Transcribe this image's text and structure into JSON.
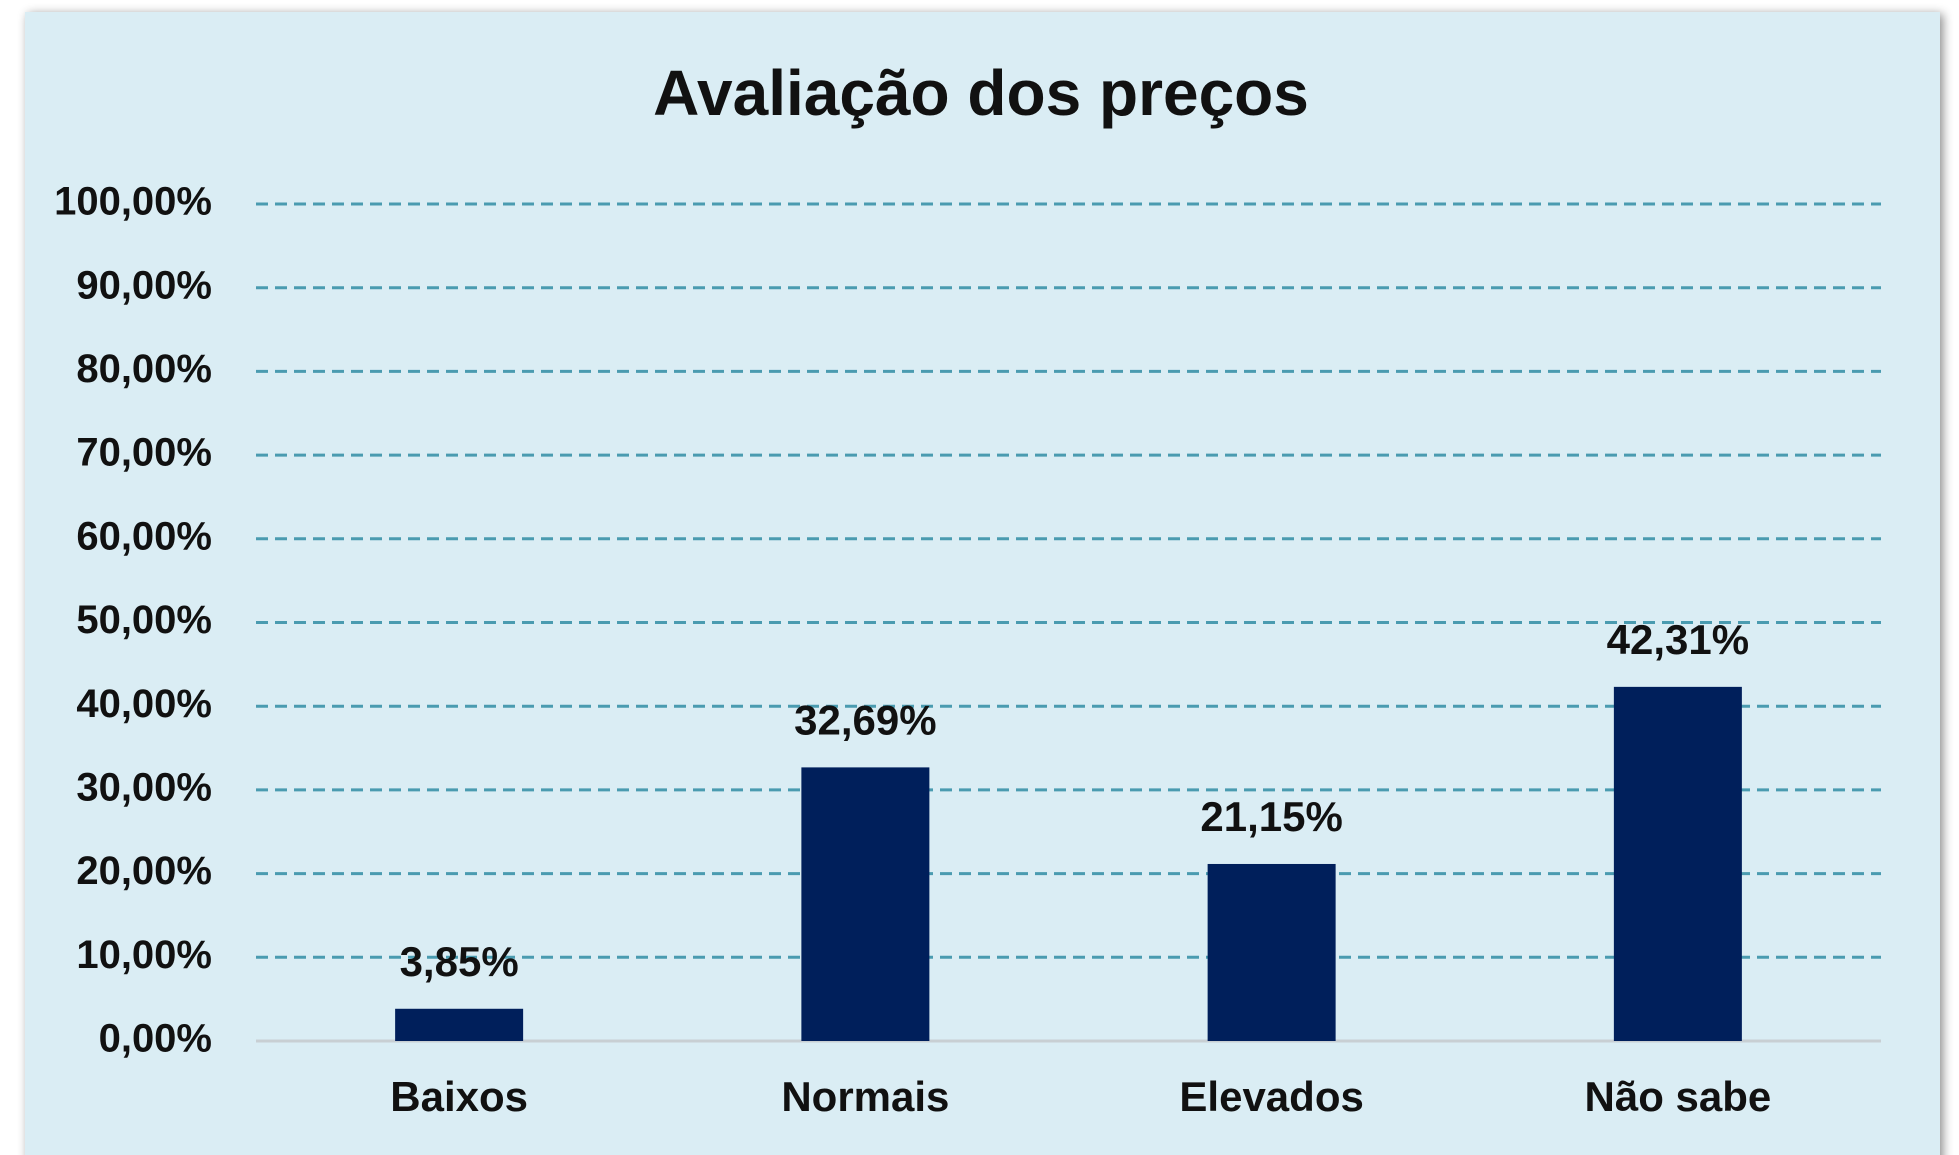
{
  "chart_data": {
    "type": "bar",
    "title": "Avaliação dos preços",
    "categories": [
      "Baixos",
      "Normais",
      "Elevados",
      "Não sabe"
    ],
    "values": [
      3.85,
      32.69,
      21.15,
      42.31
    ],
    "value_labels": [
      "3,85%",
      "32,69%",
      "21,15%",
      "42,31%"
    ],
    "color": "#001f5b",
    "ylim": [
      0,
      100
    ],
    "yticks": [
      {
        "value": 0,
        "label": "0,00%"
      },
      {
        "value": 10,
        "label": "10,00%"
      },
      {
        "value": 20,
        "label": "20,00%"
      },
      {
        "value": 30,
        "label": "30,00%"
      },
      {
        "value": 40,
        "label": "40,00%"
      },
      {
        "value": 50,
        "label": "50,00%"
      },
      {
        "value": 60,
        "label": "60,00%"
      },
      {
        "value": 70,
        "label": "70,00%"
      },
      {
        "value": 80,
        "label": "80,00%"
      },
      {
        "value": 90,
        "label": "90,00%"
      },
      {
        "value": 100,
        "label": "100,00%"
      }
    ],
    "grid": true
  }
}
